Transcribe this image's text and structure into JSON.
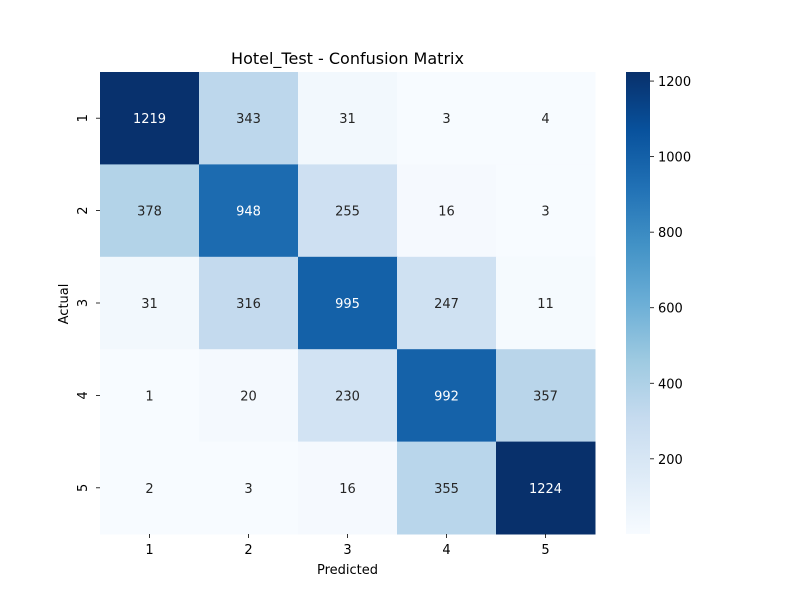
{
  "chart_data": {
    "type": "heatmap",
    "title": "Hotel_Test - Confusion Matrix",
    "xlabel": "Predicted",
    "ylabel": "Actual",
    "x_categories": [
      "1",
      "2",
      "3",
      "4",
      "5"
    ],
    "y_categories": [
      "1",
      "2",
      "3",
      "4",
      "5"
    ],
    "values": [
      [
        1219,
        343,
        31,
        3,
        4
      ],
      [
        378,
        948,
        255,
        16,
        3
      ],
      [
        31,
        316,
        995,
        247,
        11
      ],
      [
        1,
        20,
        230,
        992,
        357
      ],
      [
        2,
        3,
        16,
        355,
        1224
      ]
    ],
    "colormap": "Blues",
    "color_low": "#f7fbff",
    "color_high": "#08306b",
    "vmin": 1,
    "vmax": 1224,
    "colorbar_ticks": [
      "200",
      "400",
      "600",
      "800",
      "1000",
      "1200"
    ],
    "grid": false,
    "annotate": true
  }
}
